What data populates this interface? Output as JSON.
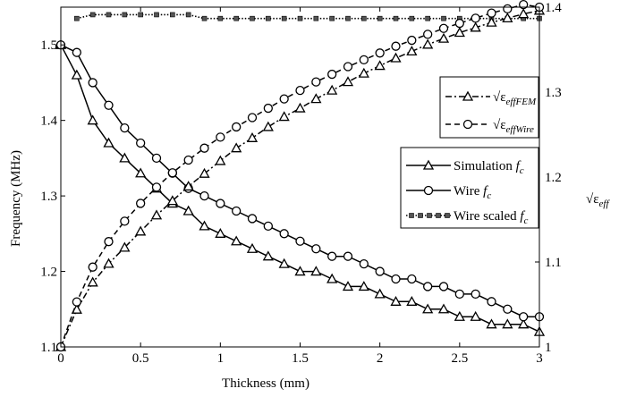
{
  "chart_data": {
    "type": "line",
    "title": "",
    "xlabel": "Thickness (mm)",
    "ylabel_left": "Frequency (MHz)",
    "ylabel_right": {
      "sym": "√ε",
      "sub": "eff"
    },
    "xlim": [
      0,
      3
    ],
    "ylim_left": [
      1.1,
      1.55
    ],
    "ylim_right": [
      1.0,
      1.4
    ],
    "x_ticks": [
      "0",
      "0.5",
      "1",
      "1.5",
      "2",
      "2.5",
      "3"
    ],
    "y_left_ticks": [
      "1.1",
      "1.2",
      "1.3",
      "1.4",
      "1.5"
    ],
    "y_right_ticks": [
      "1",
      "1.1",
      "1.2",
      "1.3",
      "1.4"
    ],
    "grid": false,
    "x": [
      0,
      0.1,
      0.2,
      0.3,
      0.4,
      0.5,
      0.6,
      0.7,
      0.8,
      0.9,
      1.0,
      1.1,
      1.2,
      1.3,
      1.4,
      1.5,
      1.6,
      1.7,
      1.8,
      1.9,
      2.0,
      2.1,
      2.2,
      2.3,
      2.4,
      2.5,
      2.6,
      2.7,
      2.8,
      2.9,
      3.0
    ],
    "series": [
      {
        "key": "sim",
        "name": "Simulation",
        "name_italic": "f",
        "name_sub": "c",
        "axis": "left",
        "style": "solid",
        "marker": "triangle",
        "values": [
          1.5,
          1.46,
          1.4,
          1.37,
          1.35,
          1.33,
          1.31,
          1.29,
          1.28,
          1.26,
          1.25,
          1.24,
          1.23,
          1.22,
          1.21,
          1.2,
          1.2,
          1.19,
          1.18,
          1.18,
          1.17,
          1.16,
          1.16,
          1.15,
          1.15,
          1.14,
          1.14,
          1.13,
          1.13,
          1.13,
          1.12
        ]
      },
      {
        "key": "wire",
        "name": "Wire",
        "name_italic": "f",
        "name_sub": "c",
        "axis": "left",
        "style": "solid",
        "marker": "circle",
        "values": [
          1.5,
          1.49,
          1.45,
          1.42,
          1.39,
          1.37,
          1.35,
          1.33,
          1.31,
          1.3,
          1.29,
          1.28,
          1.27,
          1.26,
          1.25,
          1.24,
          1.23,
          1.22,
          1.22,
          1.21,
          1.2,
          1.19,
          1.19,
          1.18,
          1.18,
          1.17,
          1.17,
          1.16,
          1.15,
          1.14,
          1.14
        ]
      },
      {
        "key": "scaled",
        "name": "Wire scaled",
        "name_italic": "f",
        "name_sub": "c",
        "axis": "left",
        "style": "dotted",
        "marker": "square",
        "values": [
          null,
          1.535,
          1.54,
          1.54,
          1.54,
          1.54,
          1.54,
          1.54,
          1.54,
          1.535,
          1.535,
          1.535,
          1.535,
          1.535,
          1.535,
          1.535,
          1.535,
          1.535,
          1.535,
          1.535,
          1.535,
          1.535,
          1.535,
          1.535,
          1.535,
          1.535,
          1.535,
          1.535,
          1.535,
          1.535,
          1.535
        ]
      },
      {
        "key": "fem",
        "name": "√ε",
        "name_sub": "effFEM",
        "axis": "right",
        "style": "dashdot",
        "marker": "triangle",
        "values": [
          1.0,
          1.044,
          1.076,
          1.098,
          1.117,
          1.136,
          1.155,
          1.172,
          1.189,
          1.204,
          1.219,
          1.234,
          1.246,
          1.259,
          1.271,
          1.281,
          1.292,
          1.302,
          1.312,
          1.322,
          1.331,
          1.34,
          1.348,
          1.356,
          1.363,
          1.37,
          1.376,
          1.382,
          1.387,
          1.392,
          1.396
        ]
      },
      {
        "key": "wireeff",
        "name": "√ε",
        "name_sub": "effWire",
        "axis": "right",
        "style": "dashed",
        "marker": "circle",
        "values": [
          1.0,
          1.053,
          1.094,
          1.124,
          1.148,
          1.169,
          1.188,
          1.205,
          1.22,
          1.234,
          1.247,
          1.259,
          1.27,
          1.281,
          1.292,
          1.302,
          1.312,
          1.321,
          1.33,
          1.338,
          1.346,
          1.354,
          1.361,
          1.368,
          1.375,
          1.381,
          1.387,
          1.393,
          1.398,
          1.403,
          1.4
        ]
      }
    ],
    "legends": [
      {
        "position": "upper-right",
        "entries": [
          "fem",
          "wireeff"
        ]
      },
      {
        "position": "middle-right",
        "entries": [
          "sim",
          "wire",
          "scaled"
        ]
      }
    ]
  }
}
